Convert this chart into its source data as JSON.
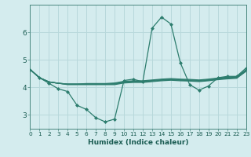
{
  "xlabel": "Humidex (Indice chaleur)",
  "bg_color": "#d4ecee",
  "grid_color": "#b8d8db",
  "line_color": "#2d7d6e",
  "x_values": [
    0,
    1,
    2,
    3,
    4,
    5,
    6,
    7,
    8,
    9,
    10,
    11,
    12,
    13,
    14,
    15,
    16,
    17,
    18,
    19,
    20,
    21,
    22,
    23
  ],
  "main_series": [
    4.65,
    4.35,
    4.15,
    3.95,
    3.85,
    3.35,
    3.2,
    2.9,
    2.75,
    2.85,
    4.25,
    4.3,
    4.2,
    6.15,
    6.55,
    6.3,
    4.9,
    4.1,
    3.9,
    4.05,
    4.35,
    4.4,
    4.4,
    4.7
  ],
  "flat_lines": [
    [
      4.65,
      4.35,
      4.2,
      4.15,
      4.12,
      4.12,
      4.12,
      4.12,
      4.12,
      4.14,
      4.2,
      4.22,
      4.22,
      4.25,
      4.28,
      4.3,
      4.28,
      4.27,
      4.25,
      4.28,
      4.32,
      4.35,
      4.37,
      4.62
    ],
    [
      4.65,
      4.35,
      4.2,
      4.15,
      4.12,
      4.12,
      4.14,
      4.14,
      4.14,
      4.16,
      4.22,
      4.24,
      4.24,
      4.27,
      4.3,
      4.32,
      4.3,
      4.29,
      4.27,
      4.3,
      4.34,
      4.37,
      4.39,
      4.64
    ],
    [
      4.65,
      4.35,
      4.2,
      4.15,
      4.12,
      4.12,
      4.12,
      4.12,
      4.12,
      4.12,
      4.18,
      4.2,
      4.2,
      4.23,
      4.26,
      4.28,
      4.26,
      4.25,
      4.23,
      4.26,
      4.3,
      4.33,
      4.35,
      4.6
    ],
    [
      4.65,
      4.35,
      4.2,
      4.15,
      4.1,
      4.1,
      4.1,
      4.1,
      4.1,
      4.1,
      4.16,
      4.18,
      4.18,
      4.21,
      4.24,
      4.26,
      4.24,
      4.23,
      4.21,
      4.24,
      4.28,
      4.31,
      4.33,
      4.58
    ]
  ],
  "xlim": [
    0,
    23
  ],
  "ylim": [
    2.5,
    7.0
  ],
  "yticks": [
    3,
    4,
    5,
    6
  ],
  "xticks": [
    0,
    1,
    2,
    3,
    4,
    5,
    6,
    7,
    8,
    9,
    10,
    11,
    12,
    13,
    14,
    15,
    16,
    17,
    18,
    19,
    20,
    21,
    22,
    23
  ]
}
